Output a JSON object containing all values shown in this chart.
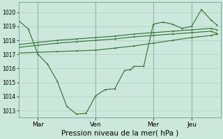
{
  "background_color": "#cce8dc",
  "grid_color": "#aacfbf",
  "line_color": "#2d6e2d",
  "xlabel": "Pression niveau de la mer( hPa )",
  "ylim": [
    1012.5,
    1020.7
  ],
  "yticks": [
    1013,
    1014,
    1015,
    1016,
    1017,
    1018,
    1019,
    1020
  ],
  "xtick_labels": [
    "Mar",
    "Ven",
    "Mer",
    "Jeu"
  ],
  "xtick_positions": [
    1,
    4,
    7,
    9
  ],
  "xlim": [
    0,
    10.5
  ],
  "series1_x": [
    0,
    0.5,
    1.0,
    1.5,
    2.0,
    2.5,
    3.0,
    3.5,
    4.0,
    4.5,
    5.0,
    5.5,
    5.8,
    6.0,
    6.5,
    7.0,
    7.5,
    8.0,
    8.5,
    9.0,
    9.5,
    10.0,
    10.3
  ],
  "series1_y": [
    1019.4,
    1018.8,
    1017.0,
    1016.3,
    1015.1,
    1013.3,
    1012.75,
    1012.8,
    1014.05,
    1014.5,
    1014.55,
    1015.85,
    1015.9,
    1016.15,
    1016.15,
    1019.15,
    1019.3,
    1019.15,
    1018.85,
    1019.0,
    1020.2,
    1019.45,
    1019.1
  ],
  "series2_x": [
    0,
    1,
    2,
    3,
    4,
    5,
    6,
    7,
    8,
    9,
    10,
    10.3
  ],
  "series2_y": [
    1017.7,
    1017.85,
    1018.0,
    1018.1,
    1018.2,
    1018.3,
    1018.45,
    1018.55,
    1018.65,
    1018.75,
    1018.85,
    1018.75
  ],
  "series3_x": [
    0,
    1,
    2,
    3,
    4,
    5,
    6,
    7,
    8,
    9,
    10,
    10.3
  ],
  "series3_y": [
    1017.5,
    1017.65,
    1017.8,
    1017.9,
    1018.0,
    1018.1,
    1018.25,
    1018.35,
    1018.45,
    1018.55,
    1018.65,
    1018.5
  ],
  "series4_x": [
    0,
    1,
    2,
    3,
    4,
    5,
    6,
    7,
    8,
    9,
    10,
    10.3
  ],
  "series4_y": [
    1017.1,
    1017.15,
    1017.2,
    1017.25,
    1017.3,
    1017.45,
    1017.6,
    1017.8,
    1018.0,
    1018.2,
    1018.35,
    1018.45
  ]
}
